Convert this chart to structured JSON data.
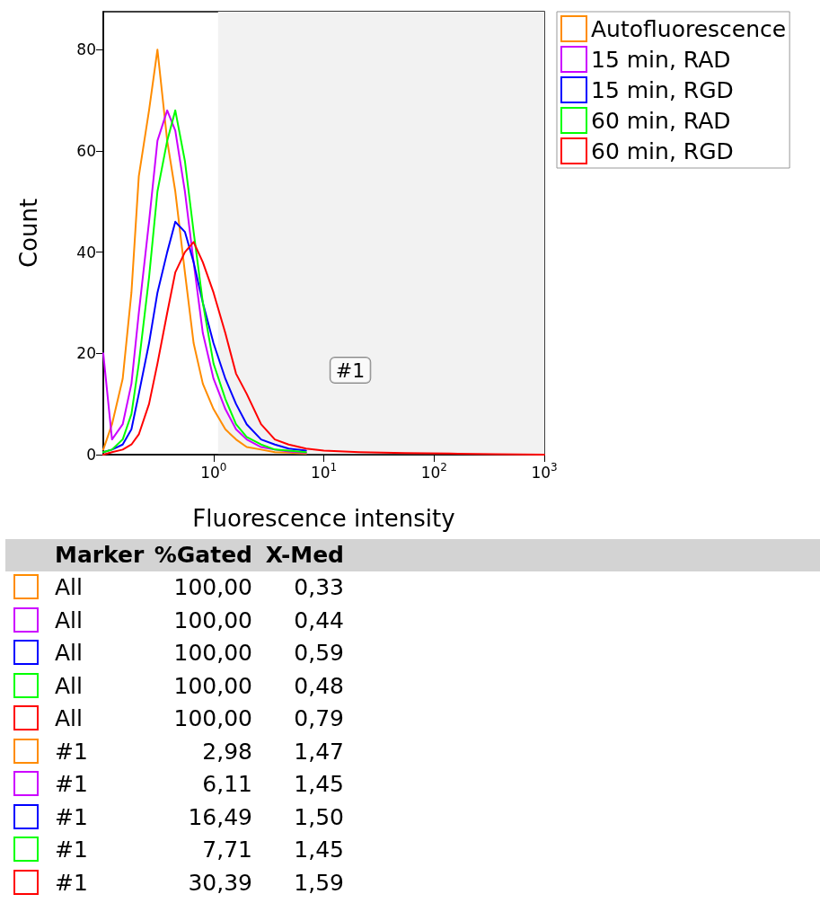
{
  "chart_data": {
    "type": "line",
    "xlabel": "Fluorescence intensity",
    "ylabel": "Count",
    "x": [
      0.1,
      0.12,
      0.15,
      0.18,
      0.21,
      0.26,
      0.31,
      0.38,
      0.45,
      0.55,
      0.66,
      0.8,
      1,
      1.28,
      1.6,
      2,
      2.7,
      3.6,
      4.8,
      6.9,
      10,
      21,
      55,
      140,
      360,
      1000
    ],
    "series": [
      {
        "name": "Autofluorescence",
        "color": "#ff8c00",
        "values": [
          1,
          6,
          15,
          32,
          55,
          68,
          80,
          62,
          52,
          36,
          22,
          14,
          9,
          5,
          3,
          1.5,
          1,
          0.5,
          0.4,
          0.2,
          null,
          null,
          null,
          null,
          null,
          null
        ]
      },
      {
        "name": "15 min, RAD",
        "color": "#cc00ff",
        "values": [
          20,
          3,
          6,
          14,
          28,
          46,
          62,
          68,
          64,
          52,
          38,
          24,
          15,
          9,
          5,
          3,
          1.5,
          1,
          0.6,
          0.4,
          null,
          null,
          null,
          null,
          null,
          null
        ]
      },
      {
        "name": "15 min, RGD",
        "color": "#0000ff",
        "values": [
          0.5,
          1,
          2,
          5,
          12,
          22,
          32,
          40,
          46,
          44,
          38,
          30,
          22,
          15,
          10,
          6,
          3,
          2,
          1.2,
          0.8,
          null,
          null,
          null,
          null,
          null,
          null
        ]
      },
      {
        "name": "60 min, RAD",
        "color": "#00ff00",
        "values": [
          0.5,
          1,
          3,
          8,
          18,
          35,
          52,
          62,
          68,
          58,
          44,
          30,
          18,
          11,
          6,
          3.5,
          2,
          1,
          0.8,
          0.5,
          null,
          null,
          null,
          null,
          null,
          null
        ]
      },
      {
        "name": "60 min, RGD",
        "color": "#ff0000",
        "values": [
          0,
          0.5,
          1,
          2,
          4,
          10,
          18,
          28,
          36,
          40,
          42,
          38,
          32,
          24,
          16,
          12,
          6,
          3,
          2,
          1.2,
          0.8,
          0.5,
          0.3,
          0.2,
          0.1,
          0
        ]
      }
    ],
    "log": "x",
    "xlim": [
      0.1,
      1000
    ],
    "xticks": [
      {
        "value": 1,
        "label": "10$^{0}$"
      },
      {
        "value": 10,
        "label": "10$^{1}$"
      },
      {
        "value": 100,
        "label": "10$^{2}$"
      },
      {
        "value": 1000,
        "label": "10$^{3}$"
      }
    ],
    "ylim": [
      0,
      87.5
    ],
    "yticks": [
      0,
      20,
      40,
      60,
      80
    ],
    "grid": false,
    "legend": "top right",
    "marker": "none",
    "line_style": "solid",
    "bands": [
      {
        "axis": "x",
        "from": 1.1,
        "to": 1000,
        "label": "#1",
        "color": "#f2f2f2"
      }
    ],
    "annotations": [
      "Marker",
      "%Gated",
      "X-Med",
      "All",
      "100,00",
      "0,33",
      "All",
      "100,00",
      "0,44",
      "All",
      "100,00",
      "0,59",
      "All",
      "100,00",
      "0,48",
      "All",
      "100,00",
      "0,79",
      "#1",
      "2,98",
      "1,47",
      "#1",
      "6,11",
      "1,45",
      "#1",
      "16,49",
      "1,50",
      "#1",
      "7,71",
      "1,45",
      "#1",
      "30,39",
      "1,59"
    ]
  }
}
